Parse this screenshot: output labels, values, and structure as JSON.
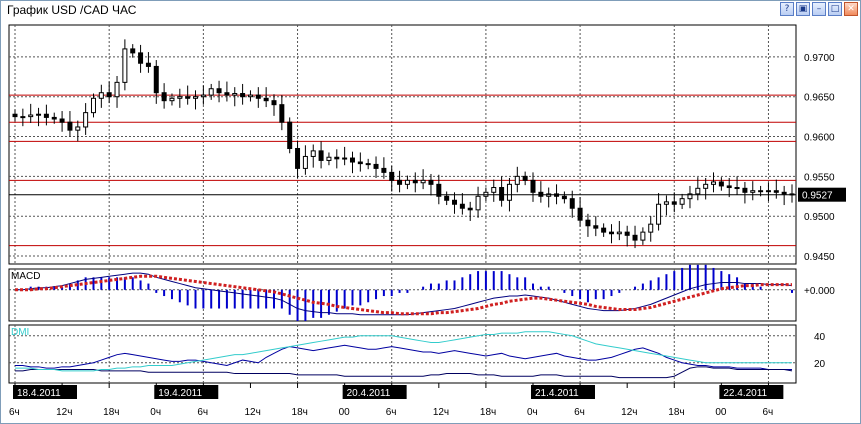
{
  "window": {
    "title": "График USD /CAD  ЧАС",
    "buttons": [
      {
        "name": "help-button",
        "glyph": "?"
      },
      {
        "name": "tile-button",
        "glyph": "▣"
      },
      {
        "name": "minimize-button",
        "glyph": "–"
      },
      {
        "name": "maximize-button",
        "glyph": "□"
      },
      {
        "name": "close-button",
        "glyph": "✕"
      }
    ]
  },
  "colors": {
    "grid": "#000000",
    "hline": "#c00000",
    "macd": "#0000cc",
    "signal": "#d02020",
    "dmi_plus": "#0000a0",
    "dmi_line": "#33cccc",
    "axis_bg": "#000000"
  },
  "chart_data": [
    {
      "type": "candlestick",
      "ylim": [
        0.944,
        0.974
      ],
      "yticks": [
        "0.9700",
        "0.9650",
        "0.9600",
        "0.9550",
        "0.9500",
        "0.9450"
      ],
      "tick_values": [
        0.97,
        0.965,
        0.96,
        0.955,
        0.95,
        0.945
      ],
      "current_price": "0.9527",
      "current_value": 0.9527,
      "hlines": [
        0.9652,
        0.9618,
        0.9594,
        0.9545,
        0.9463
      ],
      "close": [
        0.9625,
        0.9625,
        0.9627,
        0.9628,
        0.9624,
        0.9622,
        0.9618,
        0.9608,
        0.9612,
        0.963,
        0.9648,
        0.9655,
        0.965,
        0.9668,
        0.971,
        0.9705,
        0.9692,
        0.9688,
        0.9655,
        0.9645,
        0.9648,
        0.965,
        0.9648,
        0.965,
        0.9652,
        0.966,
        0.9655,
        0.9652,
        0.9654,
        0.965,
        0.9652,
        0.9648,
        0.9645,
        0.964,
        0.9618,
        0.9585,
        0.956,
        0.9575,
        0.9582,
        0.957,
        0.9574,
        0.9572,
        0.9573,
        0.9568,
        0.9566,
        0.9565,
        0.956,
        0.9555,
        0.9545,
        0.954,
        0.9545,
        0.9542,
        0.9545,
        0.954,
        0.9525,
        0.952,
        0.9515,
        0.951,
        0.9508,
        0.9525,
        0.953,
        0.9536,
        0.952,
        0.954,
        0.955,
        0.9545,
        0.953,
        0.9525,
        0.9528,
        0.9525,
        0.9522,
        0.951,
        0.9495,
        0.9488,
        0.9485,
        0.948,
        0.9478,
        0.948,
        0.9476,
        0.947,
        0.948,
        0.949,
        0.9515,
        0.9518,
        0.9515,
        0.9522,
        0.9528,
        0.9535,
        0.954,
        0.9543,
        0.9538,
        0.9536,
        0.9535,
        0.953,
        0.9532,
        0.9531,
        0.9532,
        0.953,
        0.9528,
        0.9527
      ],
      "x_labels": [
        {
          "text": "6ч",
          "bar": 0,
          "kind": "hour"
        },
        {
          "text": "12ч",
          "bar": 6,
          "kind": "hour"
        },
        {
          "text": "18ч",
          "bar": 12,
          "kind": "hour"
        },
        {
          "text": "0ч",
          "bar": 18,
          "kind": "hour"
        },
        {
          "text": "6ч",
          "bar": 24,
          "kind": "hour"
        },
        {
          "text": "12ч",
          "bar": 30,
          "kind": "hour"
        },
        {
          "text": "18ч",
          "bar": 36,
          "kind": "hour"
        },
        {
          "text": "00",
          "bar": 42,
          "kind": "hour"
        },
        {
          "text": "6ч",
          "bar": 48,
          "kind": "hour"
        },
        {
          "text": "12ч",
          "bar": 54,
          "kind": "hour"
        },
        {
          "text": "18ч",
          "bar": 60,
          "kind": "hour"
        },
        {
          "text": "0ч",
          "bar": 66,
          "kind": "hour"
        },
        {
          "text": "6ч",
          "bar": 72,
          "kind": "hour"
        },
        {
          "text": "12ч",
          "bar": 78,
          "kind": "hour"
        },
        {
          "text": "18ч",
          "bar": 84,
          "kind": "hour"
        },
        {
          "text": "00",
          "bar": 90,
          "kind": "hour"
        },
        {
          "text": "6ч",
          "bar": 96,
          "kind": "hour"
        }
      ],
      "date_labels": [
        {
          "text": "18.4.2011",
          "bar": 0
        },
        {
          "text": "19.4.2011",
          "bar": 18
        },
        {
          "text": "20.4.2011",
          "bar": 42
        },
        {
          "text": "21.4.2011",
          "bar": 66
        },
        {
          "text": "22.4.2011",
          "bar": 90
        }
      ]
    },
    {
      "type": "macd",
      "title": "MACD",
      "ytick": "+0.000",
      "ylim": [
        -0.003,
        0.002
      ],
      "macd": [
        0.0,
        0.0,
        0.0001,
        0.0002,
        0.0002,
        0.0003,
        0.0004,
        0.0006,
        0.0008,
        0.001,
        0.0011,
        0.0012,
        0.0013,
        0.0014,
        0.0015,
        0.0016,
        0.0016,
        0.0015,
        0.0012,
        0.001,
        0.0008,
        0.0006,
        0.0004,
        0.0002,
        0.0001,
        0.0,
        -0.0001,
        -0.0002,
        -0.0003,
        -0.0004,
        -0.0005,
        -0.0006,
        -0.0007,
        -0.0008,
        -0.001,
        -0.0014,
        -0.0018,
        -0.002,
        -0.0021,
        -0.0022,
        -0.0022,
        -0.0023,
        -0.0023,
        -0.0023,
        -0.0024,
        -0.0024,
        -0.0024,
        -0.0024,
        -0.0024,
        -0.0024,
        -0.0024,
        -0.0023,
        -0.0022,
        -0.0021,
        -0.002,
        -0.0019,
        -0.0018,
        -0.0016,
        -0.0014,
        -0.0012,
        -0.001,
        -0.0008,
        -0.0007,
        -0.0006,
        -0.0006,
        -0.0005,
        -0.0006,
        -0.0007,
        -0.0008,
        -0.001,
        -0.0012,
        -0.0014,
        -0.0016,
        -0.0018,
        -0.0019,
        -0.002,
        -0.002,
        -0.002,
        -0.0019,
        -0.0018,
        -0.0016,
        -0.0014,
        -0.0011,
        -0.0008,
        -0.0005,
        -0.0002,
        0.0001,
        0.0003,
        0.0005,
        0.0006,
        0.0007,
        0.0007,
        0.0007,
        0.0006,
        0.0006,
        0.0006,
        0.0005,
        0.0005,
        0.0005,
        0.0004
      ],
      "signal": [
        0.0,
        0.0,
        0.0,
        0.0001,
        0.0001,
        0.0002,
        0.0003,
        0.0004,
        0.0005,
        0.0006,
        0.0007,
        0.0008,
        0.0009,
        0.001,
        0.0011,
        0.0012,
        0.0013,
        0.0013,
        0.0013,
        0.0012,
        0.0011,
        0.001,
        0.0009,
        0.0008,
        0.0007,
        0.0006,
        0.0005,
        0.0004,
        0.0003,
        0.0002,
        0.0001,
        0.0,
        -0.0001,
        -0.0002,
        -0.0004,
        -0.0006,
        -0.0008,
        -0.001,
        -0.0012,
        -0.0013,
        -0.0014,
        -0.0016,
        -0.0017,
        -0.0018,
        -0.0019,
        -0.002,
        -0.0021,
        -0.0022,
        -0.0022,
        -0.0023,
        -0.0023,
        -0.0023,
        -0.0023,
        -0.0023,
        -0.0022,
        -0.0022,
        -0.0021,
        -0.002,
        -0.0019,
        -0.0018,
        -0.0016,
        -0.0014,
        -0.0013,
        -0.0011,
        -0.001,
        -0.0009,
        -0.0008,
        -0.0008,
        -0.0009,
        -0.001,
        -0.0011,
        -0.0012,
        -0.0013,
        -0.0014,
        -0.0016,
        -0.0017,
        -0.0018,
        -0.0019,
        -0.0019,
        -0.0019,
        -0.0018,
        -0.0017,
        -0.0015,
        -0.0013,
        -0.0011,
        -0.0009,
        -0.0007,
        -0.0005,
        -0.0003,
        -0.0001,
        0.0001,
        0.0002,
        0.0003,
        0.0004,
        0.0004,
        0.0005,
        0.0005,
        0.0005,
        0.0005,
        0.0005
      ]
    },
    {
      "type": "line",
      "title": "DMI",
      "yticks": [
        "40",
        "20"
      ],
      "tick_values": [
        40,
        20
      ],
      "ylim": [
        5,
        48
      ],
      "series": [
        {
          "values": [
            18,
            18,
            17,
            17,
            16,
            16,
            17,
            17,
            18,
            19,
            20,
            22,
            24,
            26,
            27,
            26,
            25,
            24,
            23,
            22,
            21,
            21,
            22,
            22,
            21,
            20,
            19,
            18,
            20,
            22,
            21,
            20,
            24,
            27,
            30,
            32,
            31,
            30,
            29,
            30,
            31,
            32,
            33,
            32,
            31,
            30,
            30,
            31,
            32,
            31,
            30,
            29,
            28,
            28,
            27,
            28,
            29,
            28,
            27,
            26,
            25,
            26,
            27,
            25,
            24,
            23,
            24,
            25,
            26,
            27,
            25,
            24,
            23,
            22,
            22,
            23,
            24,
            26,
            28,
            30,
            31,
            29,
            27,
            24,
            22,
            20,
            19,
            18,
            18,
            17,
            17,
            17,
            16,
            16,
            16,
            16,
            15,
            15,
            15,
            15
          ]
        },
        {
          "values": [
            14,
            14,
            15,
            15,
            15,
            15,
            15,
            15,
            15,
            15,
            15,
            14,
            14,
            14,
            14,
            14,
            14,
            13,
            13,
            13,
            13,
            13,
            13,
            13,
            13,
            13,
            13,
            13,
            12,
            12,
            12,
            12,
            12,
            12,
            12,
            12,
            11,
            11,
            11,
            11,
            11,
            11,
            10,
            10,
            10,
            10,
            10,
            10,
            10,
            10,
            10,
            10,
            10,
            11,
            11,
            12,
            12,
            12,
            12,
            11,
            11,
            11,
            10,
            10,
            10,
            10,
            10,
            11,
            11,
            11,
            10,
            10,
            10,
            10,
            10,
            10,
            10,
            9,
            9,
            9,
            9,
            9,
            9,
            9,
            10,
            13,
            16,
            17,
            17,
            16,
            16,
            16,
            15,
            15,
            15,
            15,
            15,
            15,
            15,
            14
          ]
        },
        {
          "values": [
            16,
            16,
            16,
            15,
            15,
            15,
            14,
            14,
            14,
            14,
            14,
            15,
            15,
            16,
            16,
            17,
            17,
            18,
            18,
            18,
            18,
            19,
            20,
            21,
            22,
            23,
            24,
            25,
            26,
            26,
            27,
            28,
            29,
            30,
            31,
            32,
            33,
            34,
            35,
            36,
            37,
            38,
            39,
            39,
            40,
            40,
            40,
            40,
            40,
            39,
            38,
            37,
            36,
            35,
            35,
            36,
            37,
            38,
            39,
            40,
            41,
            41,
            42,
            42,
            42,
            43,
            43,
            43,
            43,
            42,
            41,
            40,
            38,
            36,
            34,
            33,
            32,
            31,
            30,
            29,
            28,
            27,
            26,
            25,
            24,
            23,
            22,
            21,
            20,
            20,
            20,
            20,
            20,
            20,
            20,
            20,
            20,
            20,
            20,
            20
          ]
        }
      ]
    }
  ]
}
